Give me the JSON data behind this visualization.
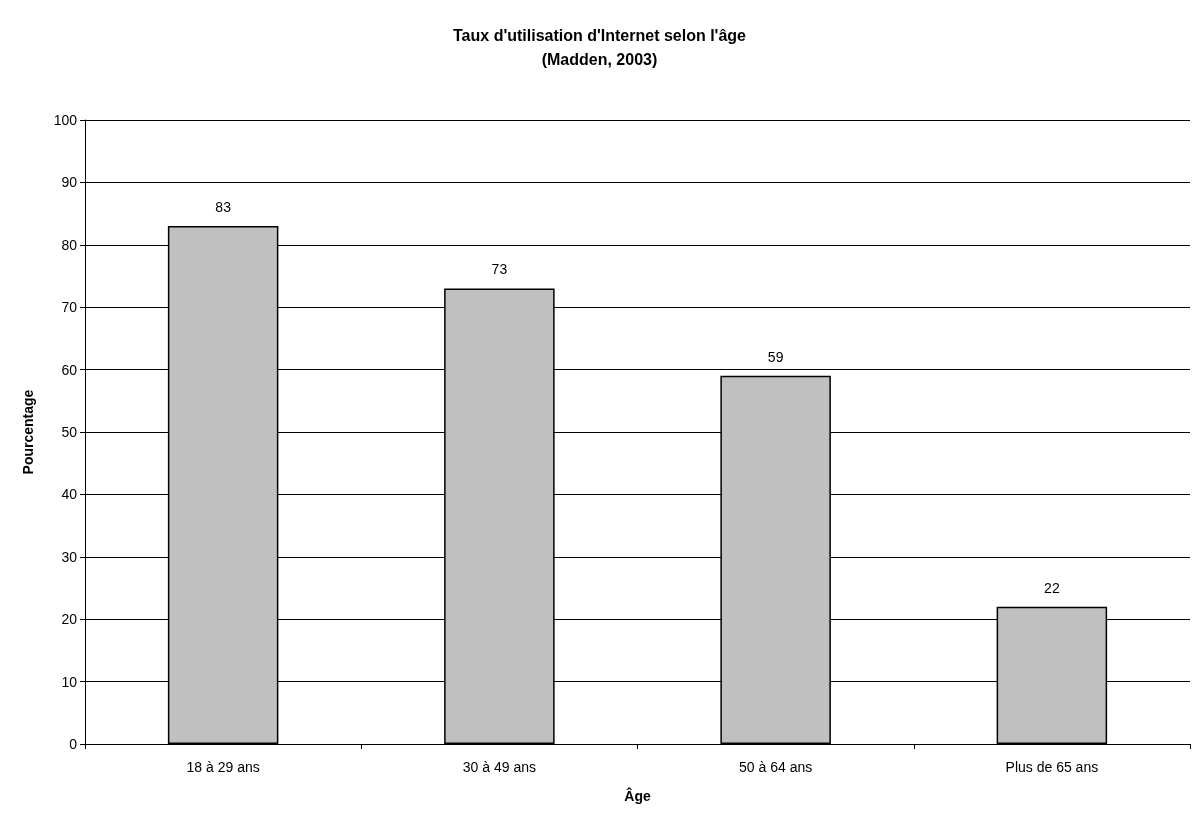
{
  "chart_data": {
    "type": "bar",
    "title": "Taux d'utilisation d'Internet selon l'âge",
    "subtitle": "(Madden, 2003)",
    "xlabel": "Âge",
    "ylabel": "Pourcentage",
    "categories": [
      "18 à 29 ans",
      "30 à 49 ans",
      "50 à 64 ans",
      "Plus de 65 ans"
    ],
    "values": [
      83,
      73,
      59,
      22
    ],
    "color": "#c0c0c0",
    "ylim": [
      0,
      100
    ],
    "yticks": [
      0,
      10,
      20,
      30,
      40,
      50,
      60,
      70,
      80,
      90,
      100
    ],
    "grid": "y",
    "data_labels": true
  }
}
